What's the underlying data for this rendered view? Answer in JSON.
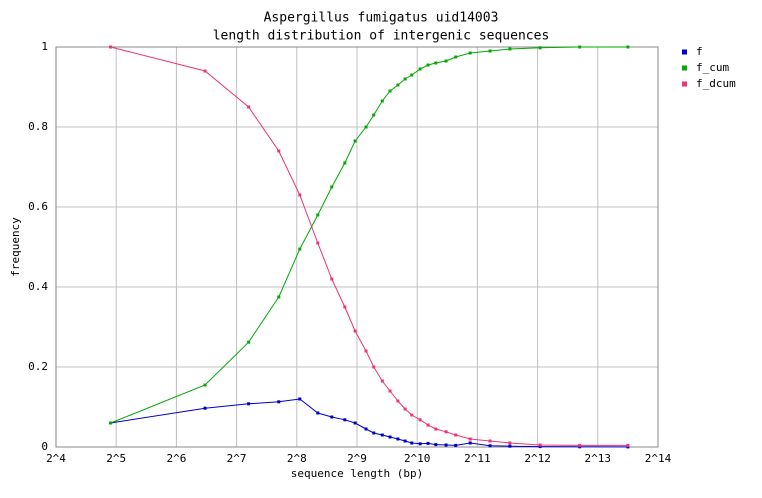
{
  "chart_data": {
    "type": "line",
    "title": "Aspergillus fumigatus uid14003",
    "subtitle": "length distribution of intergenic sequences",
    "x_label": "sequence length (bp)",
    "y_label": "frequency",
    "x_scale": "log2",
    "grid": true,
    "legend": "right",
    "xlim": [
      16,
      16384
    ],
    "ylim": [
      0,
      1
    ],
    "xticks": [
      {
        "value": 16,
        "label": "2^4"
      },
      {
        "value": 32,
        "label": "2^5"
      },
      {
        "value": 64,
        "label": "2^6"
      },
      {
        "value": 128,
        "label": "2^7"
      },
      {
        "value": 256,
        "label": "2^8"
      },
      {
        "value": 512,
        "label": "2^9"
      },
      {
        "value": 1024,
        "label": "2^10"
      },
      {
        "value": 2048,
        "label": "2^11"
      },
      {
        "value": 4096,
        "label": "2^12"
      },
      {
        "value": 8192,
        "label": "2^13"
      },
      {
        "value": 16384,
        "label": "2^14"
      }
    ],
    "yticks": [
      0,
      0.2,
      0.4,
      0.6,
      0.8,
      1
    ],
    "x": [
      30,
      89,
      147,
      208,
      265,
      326,
      383,
      445,
      501,
      568,
      621,
      685,
      749,
      820,
      891,
      962,
      1059,
      1160,
      1269,
      1428,
      1595,
      1885,
      2369,
      2977,
      4217,
      6654,
      11585
    ],
    "series": [
      {
        "name": "f",
        "color": "#0000cc",
        "values": [
          0.06,
          0.097,
          0.108,
          0.113,
          0.12,
          0.085,
          0.075,
          0.068,
          0.06,
          0.045,
          0.035,
          0.03,
          0.025,
          0.02,
          0.015,
          0.01,
          0.008,
          0.009,
          0.006,
          0.005,
          0.004,
          0.01,
          0.003,
          0.002,
          0.001,
          0.0005,
          0.0002
        ]
      },
      {
        "name": "f_cum",
        "color": "#00aa00",
        "values": [
          0.06,
          0.155,
          0.262,
          0.375,
          0.495,
          0.58,
          0.65,
          0.71,
          0.765,
          0.8,
          0.83,
          0.865,
          0.89,
          0.905,
          0.92,
          0.93,
          0.945,
          0.955,
          0.96,
          0.965,
          0.975,
          0.985,
          0.99,
          0.995,
          0.998,
          1.0,
          1.0
        ]
      },
      {
        "name": "f_dcum",
        "color": "#ee3377",
        "values": [
          1.0,
          0.94,
          0.85,
          0.74,
          0.63,
          0.51,
          0.42,
          0.35,
          0.29,
          0.24,
          0.2,
          0.165,
          0.14,
          0.115,
          0.095,
          0.08,
          0.068,
          0.055,
          0.045,
          0.038,
          0.03,
          0.02,
          0.015,
          0.01,
          0.005,
          0.004,
          0.004
        ]
      }
    ]
  }
}
